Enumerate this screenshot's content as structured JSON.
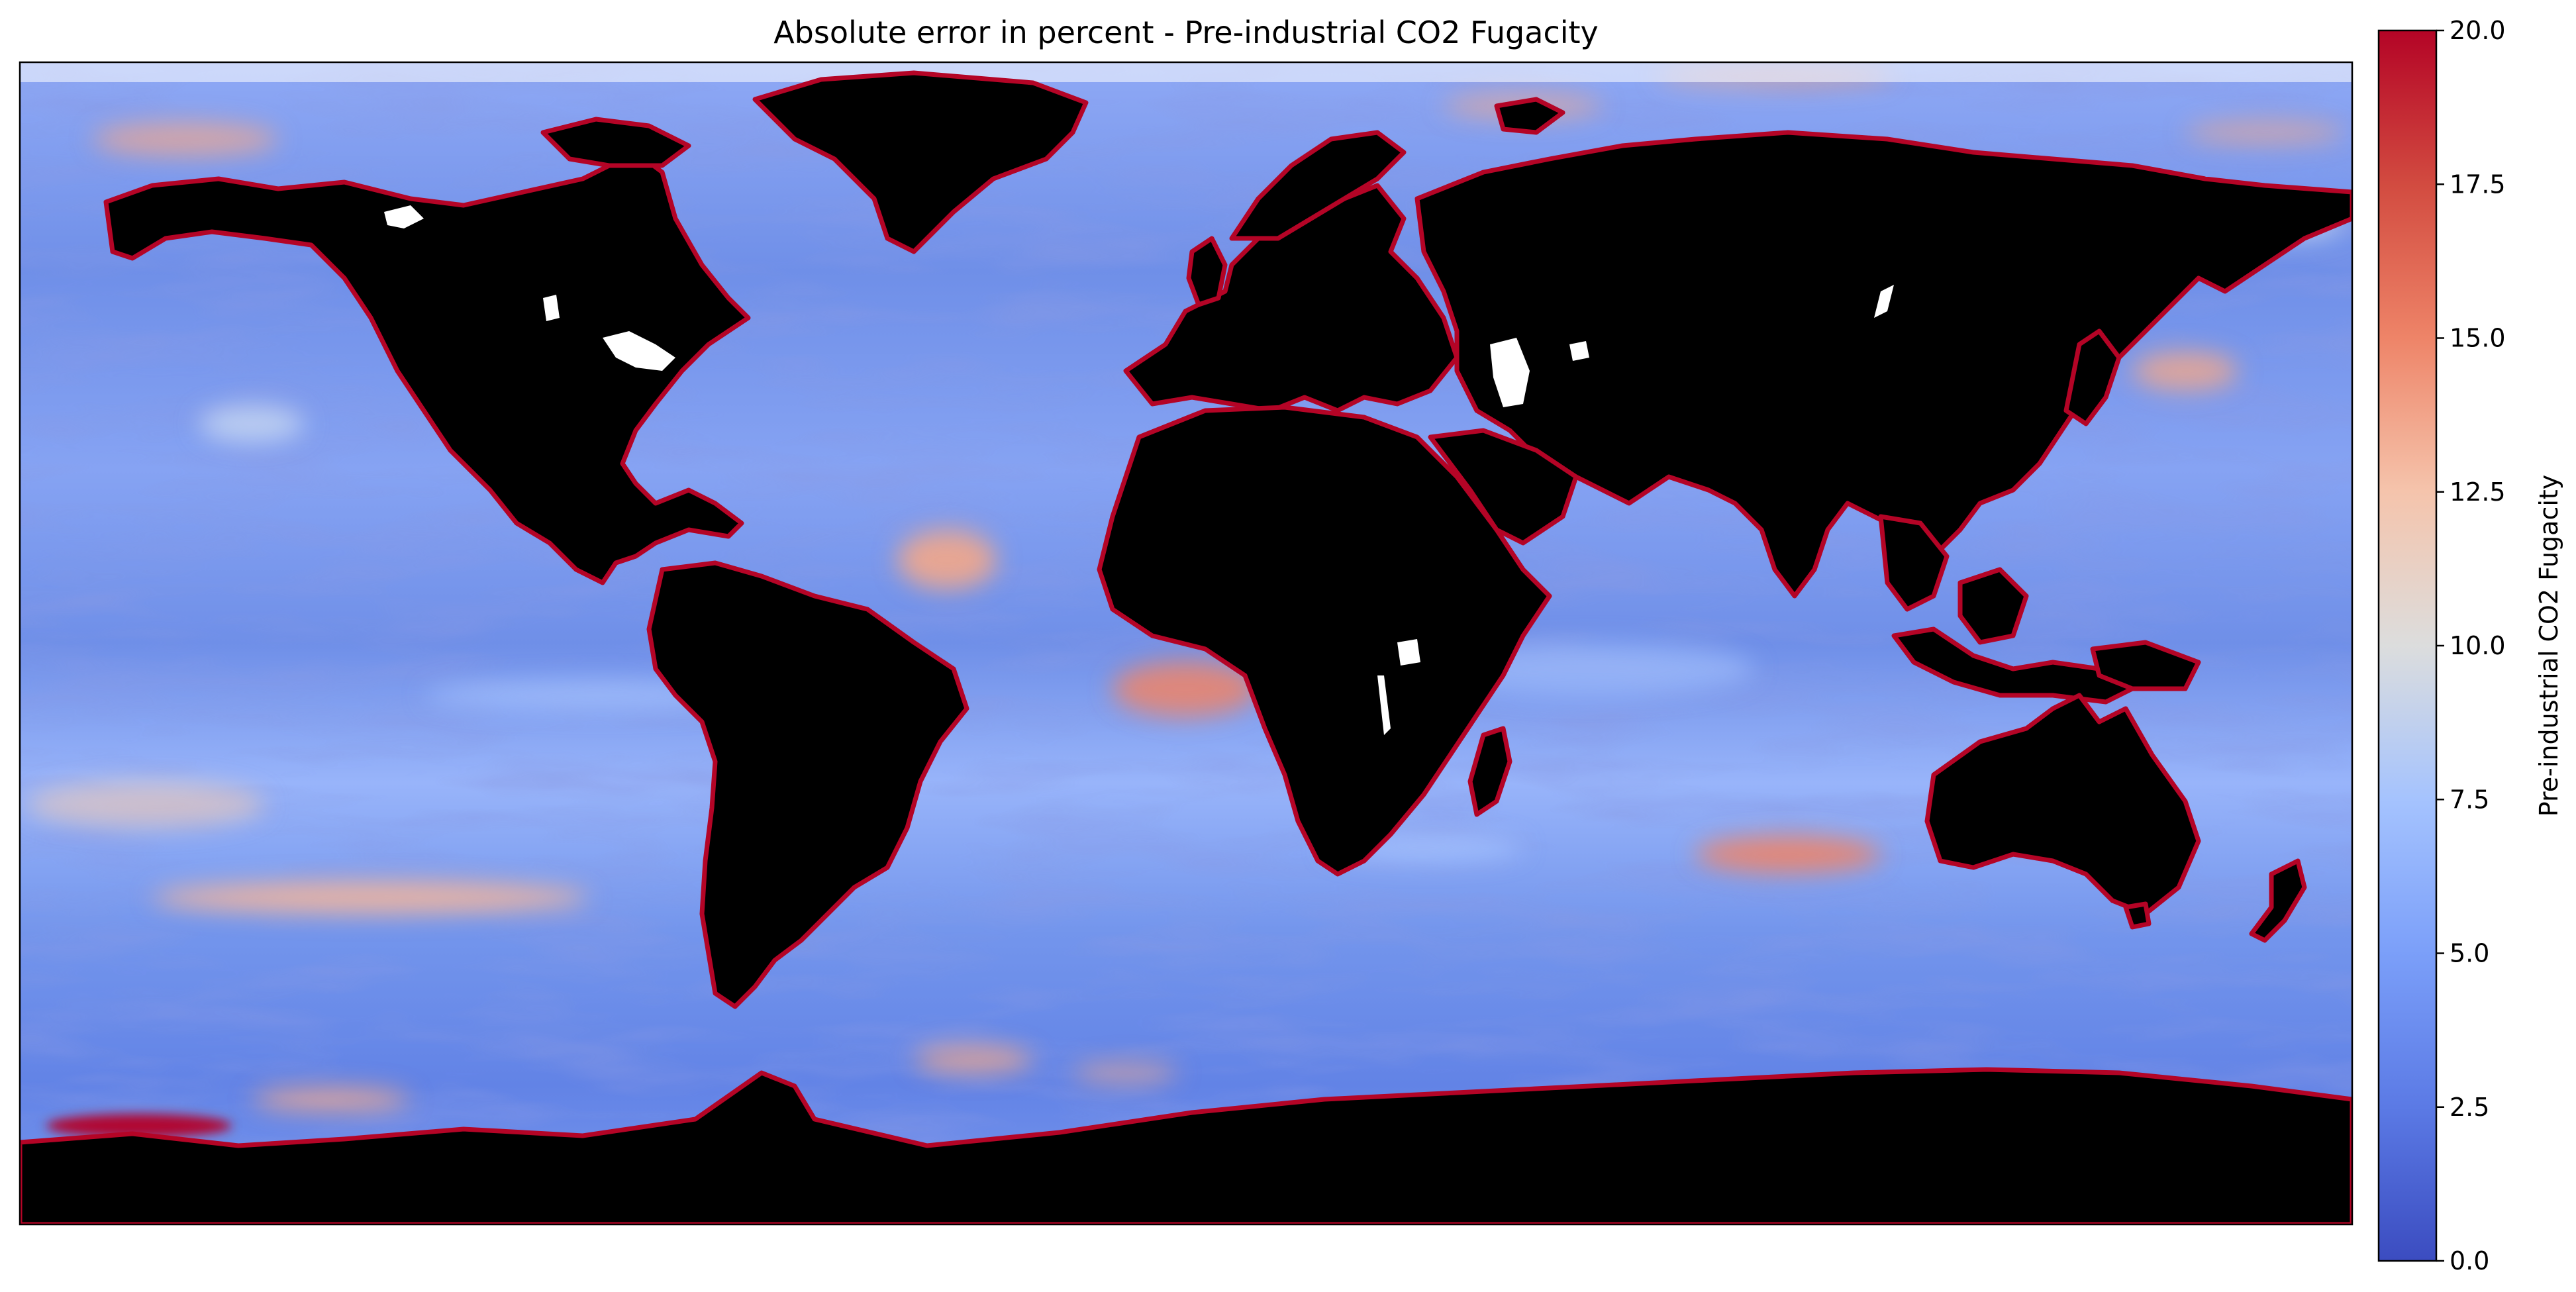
{
  "title": "Absolute error in percent - Pre-industrial CO2 Fugacity",
  "colorbar": {
    "label": "Pre-industrial CO2 Fugacity",
    "min": 0.0,
    "max": 20.0,
    "ticks": [
      "0.0",
      "2.5",
      "5.0",
      "7.5",
      "10.0",
      "12.5",
      "15.0",
      "17.5",
      "20.0"
    ],
    "colormap": "coolwarm",
    "stops": [
      "#3b4cc0",
      "#6788ee",
      "#9abbff",
      "#c9d7f0",
      "#dddddd",
      "#f7b89c",
      "#ee8468",
      "#d0473d",
      "#b40426"
    ]
  },
  "colors": {
    "land": "#000000",
    "lakes": "#ffffff",
    "ocean_base": "#6f8fe8",
    "coastline_error": "#b40426"
  }
}
